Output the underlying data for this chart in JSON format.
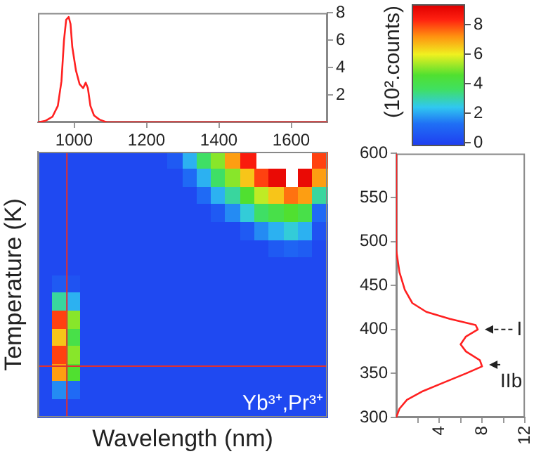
{
  "chart_data": [
    {
      "type": "line",
      "x": [
        900,
        920,
        940,
        955,
        965,
        972,
        978,
        985,
        990,
        995,
        1005,
        1015,
        1025,
        1032,
        1038,
        1045,
        1055,
        1070,
        1090,
        1200,
        1400,
        1700
      ],
      "series": [
        {
          "color": "#ff2020",
          "values": [
            0,
            0.1,
            0.4,
            1.2,
            3,
            6,
            7.5,
            7.7,
            7.2,
            5.5,
            3.8,
            2.8,
            2.5,
            2.9,
            2.5,
            1.2,
            0.5,
            0.2,
            0,
            0,
            0,
            0
          ]
        }
      ],
      "xlim": [
        900,
        1700
      ],
      "xticks": [
        1000,
        1200,
        1400,
        1600
      ],
      "ylim": [
        0,
        8
      ],
      "yticks": [
        2,
        4,
        6,
        8
      ]
    },
    {
      "type": "heatmap",
      "xlabel": "Wavelength (nm)",
      "ylabel": "Temperature (K)",
      "clabel": "(10².counts)",
      "categories": [
        null,
        null,
        null,
        null,
        null,
        null,
        null,
        null,
        null,
        null,
        null,
        null,
        null,
        null,
        null,
        null,
        null,
        null,
        null,
        null
      ],
      "y_categories": [
        null,
        null,
        null,
        null,
        null,
        null,
        null,
        null,
        null,
        null,
        null,
        null,
        null,
        null,
        null
      ],
      "cells": [
        [
          0,
          0,
          0,
          0,
          0,
          0,
          0,
          0,
          0,
          0.5,
          2,
          3.5,
          5,
          7,
          8.5,
          null,
          null,
          null,
          null,
          8
        ],
        [
          0,
          0,
          0,
          0,
          0,
          0,
          0,
          0,
          0,
          0,
          1,
          2,
          3.5,
          5,
          6.5,
          8,
          9,
          null,
          9,
          7
        ],
        [
          0,
          0,
          0,
          0,
          0,
          0,
          0,
          0,
          0,
          0,
          0,
          1,
          2,
          3,
          4.5,
          5.5,
          6.5,
          7.5,
          7,
          3
        ],
        [
          0,
          0,
          0,
          0,
          0,
          0,
          0,
          0,
          0,
          0,
          0,
          0,
          0.5,
          1.5,
          2.5,
          3.5,
          4,
          4.5,
          4,
          1
        ],
        [
          0,
          0,
          0,
          0,
          0,
          0,
          0,
          0,
          0,
          0,
          0,
          0,
          0,
          0,
          0.5,
          1.5,
          2,
          2.5,
          2,
          0.3
        ],
        [
          0,
          0,
          0,
          0,
          0,
          0,
          0,
          0,
          0,
          0,
          0,
          0,
          0,
          0,
          0,
          0,
          0.5,
          0.8,
          0.6,
          0
        ],
        [
          0,
          0,
          0,
          0,
          0,
          0,
          0,
          0,
          0,
          0,
          0,
          0,
          0,
          0,
          0,
          0,
          0,
          0,
          0,
          0
        ],
        [
          0,
          0.5,
          0.3,
          0,
          0,
          0,
          0,
          0,
          0,
          0,
          0,
          0,
          0,
          0,
          0,
          0,
          0,
          0,
          0,
          0
        ],
        [
          0,
          3,
          2,
          0,
          0,
          0,
          0,
          0,
          0,
          0,
          0,
          0,
          0,
          0,
          0,
          0,
          0,
          0,
          0,
          0
        ],
        [
          0,
          8,
          5,
          0,
          0,
          0,
          0,
          0,
          0,
          0,
          0,
          0,
          0,
          0,
          0,
          0,
          0,
          0,
          0,
          0
        ],
        [
          0,
          6.5,
          4,
          0,
          0,
          0,
          0,
          0,
          0,
          0,
          0,
          0,
          0,
          0,
          0,
          0,
          0,
          0,
          0,
          0
        ],
        [
          0,
          8,
          5,
          0,
          0,
          0,
          0,
          0,
          0,
          0,
          0,
          0,
          0,
          0,
          0,
          0,
          0,
          0,
          0,
          0
        ],
        [
          0,
          7,
          4.5,
          0,
          0,
          0,
          0,
          0,
          0,
          0,
          0,
          0,
          0,
          0,
          0,
          0,
          0,
          0,
          0,
          0
        ],
        [
          0,
          1.5,
          1,
          0,
          0,
          0,
          0,
          0,
          0,
          0,
          0,
          0,
          0,
          0,
          0,
          0,
          0,
          0,
          0,
          0
        ],
        [
          0,
          0,
          0,
          0,
          0,
          0,
          0,
          0,
          0,
          0,
          0,
          0,
          0,
          0,
          0,
          0,
          0,
          0,
          0,
          0
        ]
      ],
      "clim": [
        -0.3,
        9.3
      ],
      "cticks": [
        0,
        2,
        4,
        6,
        8
      ],
      "annotations": [
        "Yb³⁺,Pr³⁺"
      ]
    },
    {
      "type": "line",
      "series": [
        {
          "color": "#ff2020",
          "x": [
            0,
            0.3,
            1,
            2.5,
            4.5,
            6.5,
            8,
            7.8,
            6.5,
            6,
            6.5,
            7.6,
            7.4,
            5,
            2.8,
            1.5,
            0.8,
            0.3,
            0,
            0
          ],
          "values": [
            300,
            310,
            320,
            330,
            340,
            350,
            358,
            365,
            375,
            383,
            392,
            400,
            405,
            412,
            420,
            430,
            445,
            465,
            490,
            600
          ]
        }
      ],
      "xlim": [
        0,
        12
      ],
      "xticks": [
        {
          "value": 2,
          "label": null
        },
        4,
        {
          "value": 6,
          "label": null
        },
        8,
        {
          "value": 10,
          "label": null
        },
        12
      ],
      "ylim": [
        300,
        600
      ],
      "yticks": [
        300,
        350,
        400,
        450,
        500,
        550,
        600
      ],
      "annotations": [
        {
          "text": "I",
          "x": 7.6,
          "y": 400
        },
        {
          "text": "IIb",
          "x": 8,
          "y": 360
        }
      ]
    }
  ]
}
